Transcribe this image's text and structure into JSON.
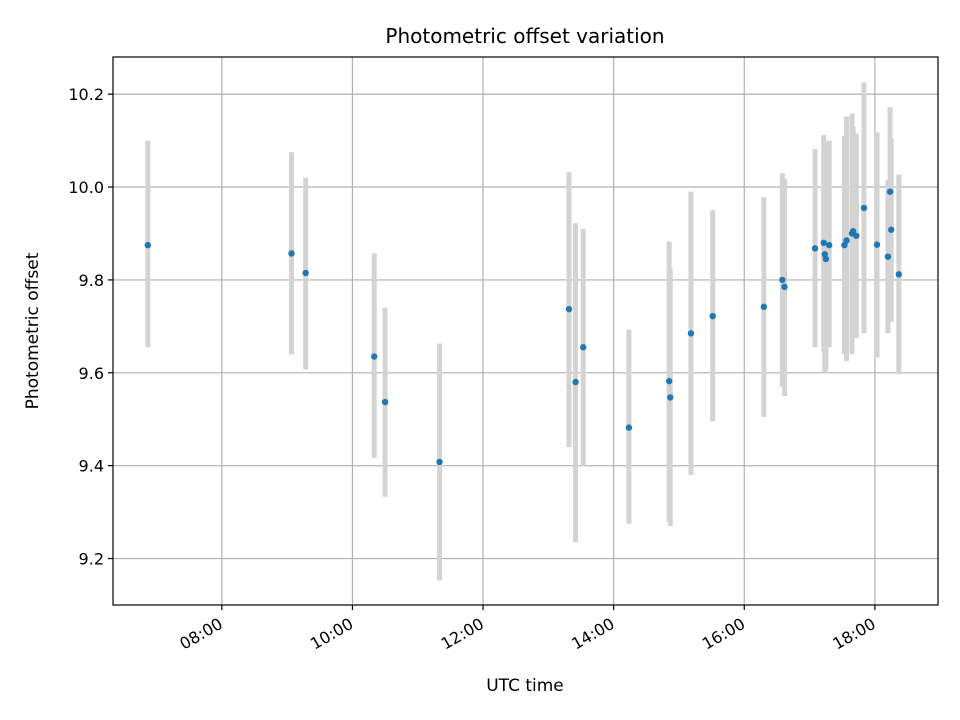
{
  "chart_data": {
    "type": "scatter",
    "title": "Photometric offset variation",
    "xlabel": "UTC time",
    "ylabel": "Photometric offset",
    "xlim": [
      "06:20",
      "18:58"
    ],
    "ylim": [
      9.1,
      10.28
    ],
    "x_ticks": [
      "08:00",
      "10:00",
      "12:00",
      "14:00",
      "16:00",
      "18:00"
    ],
    "y_ticks": [
      "9.2",
      "9.4",
      "9.6",
      "9.8",
      "10.0",
      "10.2"
    ],
    "grid": true,
    "colors": {
      "point": "#1f77b4",
      "errorbar": "#d3d3d3",
      "grid": "#b0b0b0"
    },
    "points": [
      {
        "x": "06:52",
        "y": 9.875,
        "ylow": 9.655,
        "yhigh": 10.1
      },
      {
        "x": "09:04",
        "y": 9.857,
        "ylow": 9.64,
        "yhigh": 10.075
      },
      {
        "x": "09:17",
        "y": 9.815,
        "ylow": 9.607,
        "yhigh": 10.02
      },
      {
        "x": "10:20",
        "y": 9.635,
        "ylow": 9.417,
        "yhigh": 9.857
      },
      {
        "x": "10:30",
        "y": 9.537,
        "ylow": 9.333,
        "yhigh": 9.74
      },
      {
        "x": "11:20",
        "y": 9.408,
        "ylow": 9.153,
        "yhigh": 9.663
      },
      {
        "x": "13:19",
        "y": 9.737,
        "ylow": 9.44,
        "yhigh": 10.032
      },
      {
        "x": "13:25",
        "y": 9.58,
        "ylow": 9.235,
        "yhigh": 9.922
      },
      {
        "x": "13:32",
        "y": 9.655,
        "ylow": 9.4,
        "yhigh": 9.91
      },
      {
        "x": "14:14",
        "y": 9.482,
        "ylow": 9.275,
        "yhigh": 9.693
      },
      {
        "x": "14:51",
        "y": 9.582,
        "ylow": 9.28,
        "yhigh": 9.883
      },
      {
        "x": "14:52",
        "y": 9.547,
        "ylow": 9.27,
        "yhigh": 9.825
      },
      {
        "x": "15:11",
        "y": 9.685,
        "ylow": 9.38,
        "yhigh": 9.99
      },
      {
        "x": "15:31",
        "y": 9.722,
        "ylow": 9.495,
        "yhigh": 9.95
      },
      {
        "x": "16:18",
        "y": 9.742,
        "ylow": 9.505,
        "yhigh": 9.978
      },
      {
        "x": "16:35",
        "y": 9.8,
        "ylow": 9.57,
        "yhigh": 10.03
      },
      {
        "x": "16:37",
        "y": 9.785,
        "ylow": 9.55,
        "yhigh": 10.018
      },
      {
        "x": "17:05",
        "y": 9.868,
        "ylow": 9.655,
        "yhigh": 10.082
      },
      {
        "x": "17:13",
        "y": 9.88,
        "ylow": 9.645,
        "yhigh": 10.112
      },
      {
        "x": "17:14",
        "y": 9.855,
        "ylow": 9.6,
        "yhigh": 10.095
      },
      {
        "x": "17:15",
        "y": 9.845,
        "ylow": 9.605,
        "yhigh": 10.085
      },
      {
        "x": "17:18",
        "y": 9.875,
        "ylow": 9.655,
        "yhigh": 10.1
      },
      {
        "x": "17:32",
        "y": 9.875,
        "ylow": 9.64,
        "yhigh": 10.11
      },
      {
        "x": "17:34",
        "y": 9.885,
        "ylow": 9.625,
        "yhigh": 10.152
      },
      {
        "x": "17:39",
        "y": 9.9,
        "ylow": 9.64,
        "yhigh": 10.158
      },
      {
        "x": "17:40",
        "y": 9.905,
        "ylow": 9.68,
        "yhigh": 10.13
      },
      {
        "x": "17:43",
        "y": 9.895,
        "ylow": 9.675,
        "yhigh": 10.115
      },
      {
        "x": "17:50",
        "y": 9.955,
        "ylow": 9.685,
        "yhigh": 10.225
      },
      {
        "x": "18:02",
        "y": 9.876,
        "ylow": 9.633,
        "yhigh": 10.118
      },
      {
        "x": "18:12",
        "y": 9.85,
        "ylow": 9.685,
        "yhigh": 10.015
      },
      {
        "x": "18:14",
        "y": 9.99,
        "ylow": 9.808,
        "yhigh": 10.172
      },
      {
        "x": "18:15",
        "y": 9.908,
        "ylow": 9.71,
        "yhigh": 10.105
      },
      {
        "x": "18:22",
        "y": 9.812,
        "ylow": 9.597,
        "yhigh": 10.027
      }
    ]
  }
}
